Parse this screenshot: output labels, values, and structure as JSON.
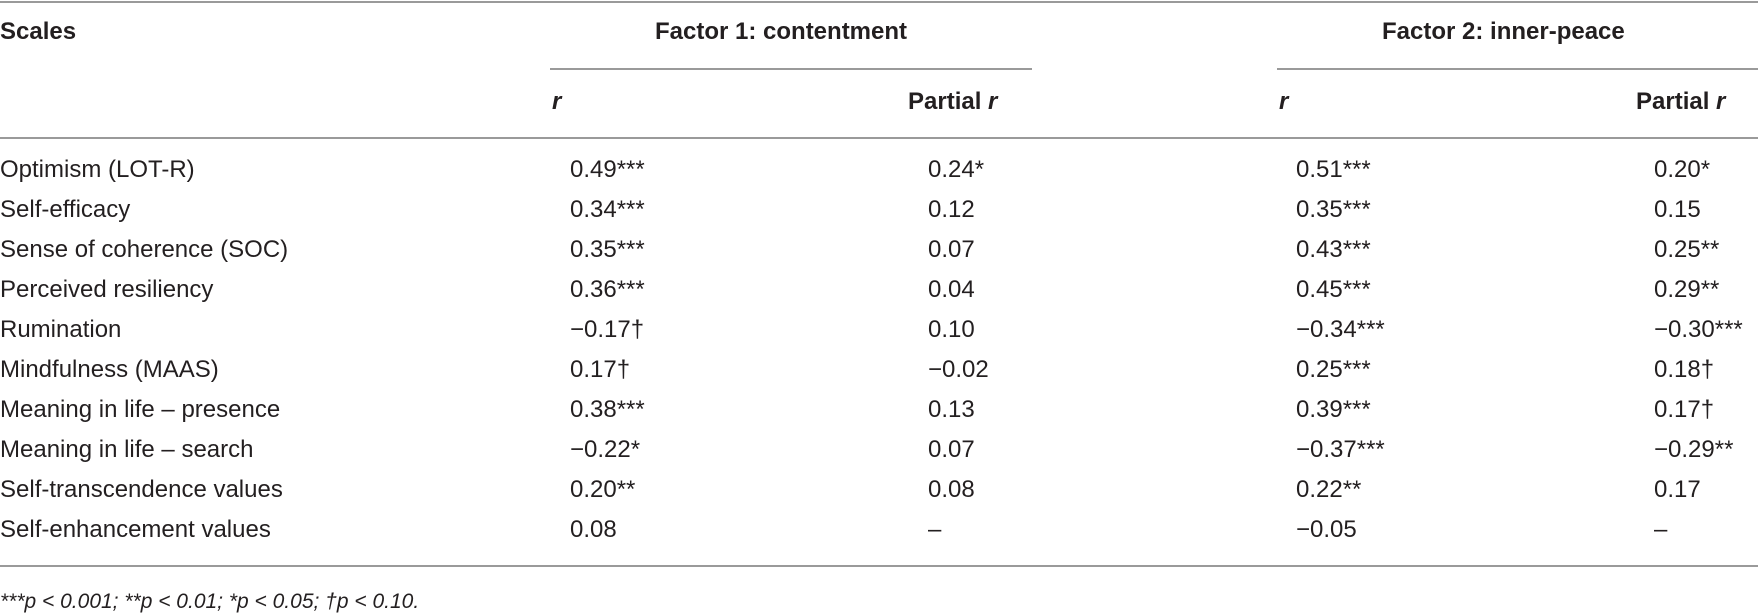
{
  "header": {
    "scales": "Scales",
    "factor1": "Factor 1: contentment",
    "factor2": "Factor 2: inner-peace",
    "r_label": "r",
    "partial_prefix": "Partial",
    "partial_r": "r"
  },
  "rows": [
    {
      "scale": "Optimism (LOT-R)",
      "f1_r": "0.49***",
      "f1_partial": "0.24*",
      "f2_r": "0.51***",
      "f2_partial": "0.20*"
    },
    {
      "scale": "Self-efficacy",
      "f1_r": "0.34***",
      "f1_partial": "0.12",
      "f2_r": "0.35***",
      "f2_partial": "0.15"
    },
    {
      "scale": "Sense of coherence (SOC)",
      "f1_r": "0.35***",
      "f1_partial": "0.07",
      "f2_r": "0.43***",
      "f2_partial": "0.25**"
    },
    {
      "scale": "Perceived resiliency",
      "f1_r": "0.36***",
      "f1_partial": "0.04",
      "f2_r": "0.45***",
      "f2_partial": "0.29**"
    },
    {
      "scale": "Rumination",
      "f1_r": "−0.17†",
      "f1_partial": "0.10",
      "f2_r": "−0.34***",
      "f2_partial": "−0.30***"
    },
    {
      "scale": "Mindfulness (MAAS)",
      "f1_r": "0.17†",
      "f1_partial": "−0.02",
      "f2_r": "0.25***",
      "f2_partial": "0.18†"
    },
    {
      "scale": "Meaning in life – presence",
      "f1_r": "0.38***",
      "f1_partial": "0.13",
      "f2_r": "0.39***",
      "f2_partial": "0.17†"
    },
    {
      "scale": "Meaning in life – search",
      "f1_r": "−0.22*",
      "f1_partial": "0.07",
      "f2_r": "−0.37***",
      "f2_partial": "−0.29**"
    },
    {
      "scale": "Self-transcendence values",
      "f1_r": "0.20**",
      "f1_partial": "0.08",
      "f2_r": "0.22**",
      "f2_partial": "0.17"
    },
    {
      "scale": "Self-enhancement values",
      "f1_r": "0.08",
      "f1_partial": "–",
      "f2_r": "−0.05",
      "f2_partial": "–"
    }
  ],
  "footnote": "***p < 0.001; **p < 0.01; *p < 0.05; †p < 0.10."
}
